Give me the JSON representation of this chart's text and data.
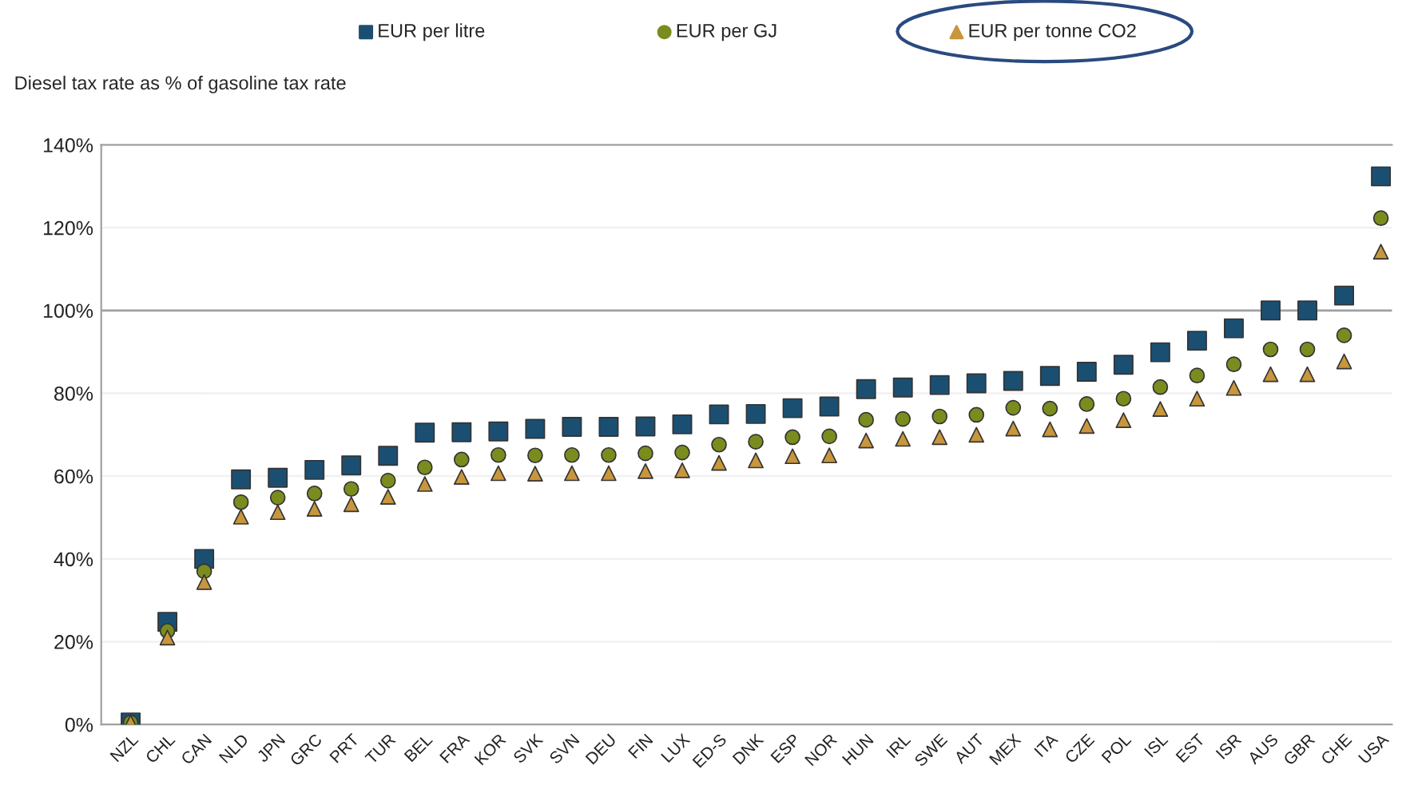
{
  "chart_data": {
    "type": "scatter",
    "ylabel": "Diesel tax rate as % of gasoline tax rate",
    "categories": [
      "NZL",
      "CHL",
      "CAN",
      "NLD",
      "JPN",
      "GRC",
      "PRT",
      "TUR",
      "BEL",
      "FRA",
      "KOR",
      "SVK",
      "SVN",
      "DEU",
      "FIN",
      "LUX",
      "ED-S",
      "DNK",
      "ESP",
      "NOR",
      "HUN",
      "IRL",
      "SWE",
      "AUT",
      "MEX",
      "ITA",
      "CZE",
      "POL",
      "ISL",
      "EST",
      "ISR",
      "AUS",
      "GBR",
      "CHE",
      "USA"
    ],
    "series": [
      {
        "name": "EUR per litre",
        "color": "#1b4f72",
        "marker": "square",
        "values": [
          0.5,
          24.8,
          40.0,
          59.2,
          59.6,
          61.5,
          62.6,
          64.9,
          70.5,
          70.6,
          70.8,
          71.4,
          71.9,
          71.9,
          72.0,
          72.5,
          74.9,
          75.0,
          76.4,
          76.8,
          81.0,
          81.4,
          82.0,
          82.4,
          83.0,
          84.2,
          85.2,
          86.9,
          89.9,
          92.7,
          95.7,
          100,
          100,
          103.6,
          132.4
        ]
      },
      {
        "name": "EUR per GJ",
        "color": "#7a8c1e",
        "marker": "circle",
        "values": [
          0.5,
          22.6,
          37.0,
          53.7,
          54.8,
          55.8,
          56.9,
          58.9,
          62.1,
          64.0,
          65.1,
          65.0,
          65.1,
          65.1,
          65.5,
          65.7,
          67.6,
          68.3,
          69.4,
          69.6,
          73.6,
          73.8,
          74.4,
          74.8,
          76.5,
          76.3,
          77.4,
          78.7,
          81.5,
          84.3,
          87.0,
          90.6,
          90.6,
          94.0,
          122.3
        ]
      },
      {
        "name": "EUR per tonne CO2",
        "color": "#c8963c",
        "marker": "triangle",
        "values": [
          0.5,
          21.0,
          34.4,
          50.2,
          51.3,
          52.1,
          53.2,
          55.0,
          58.1,
          59.8,
          60.7,
          60.6,
          60.7,
          60.7,
          61.2,
          61.4,
          63.2,
          63.8,
          64.8,
          65.0,
          68.6,
          69.0,
          69.4,
          70.0,
          71.5,
          71.3,
          72.1,
          73.5,
          76.2,
          78.7,
          81.3,
          84.6,
          84.6,
          87.7,
          114.2
        ]
      }
    ],
    "ylim": [
      0,
      140
    ],
    "yticks": [
      {
        "value": 0,
        "label": "0%"
      },
      {
        "value": 20,
        "label": "20%"
      },
      {
        "value": 40,
        "label": "40%"
      },
      {
        "value": 60,
        "label": "60%"
      },
      {
        "value": 80,
        "label": "80%"
      },
      {
        "value": 100,
        "label": "100%"
      },
      {
        "value": 120,
        "label": "120%"
      },
      {
        "value": 140,
        "label": "140%"
      }
    ],
    "ref_lines": [
      {
        "axis": "y",
        "value": 100,
        "color": "#a0a0a0"
      }
    ],
    "grid": "y",
    "legend": "top"
  }
}
